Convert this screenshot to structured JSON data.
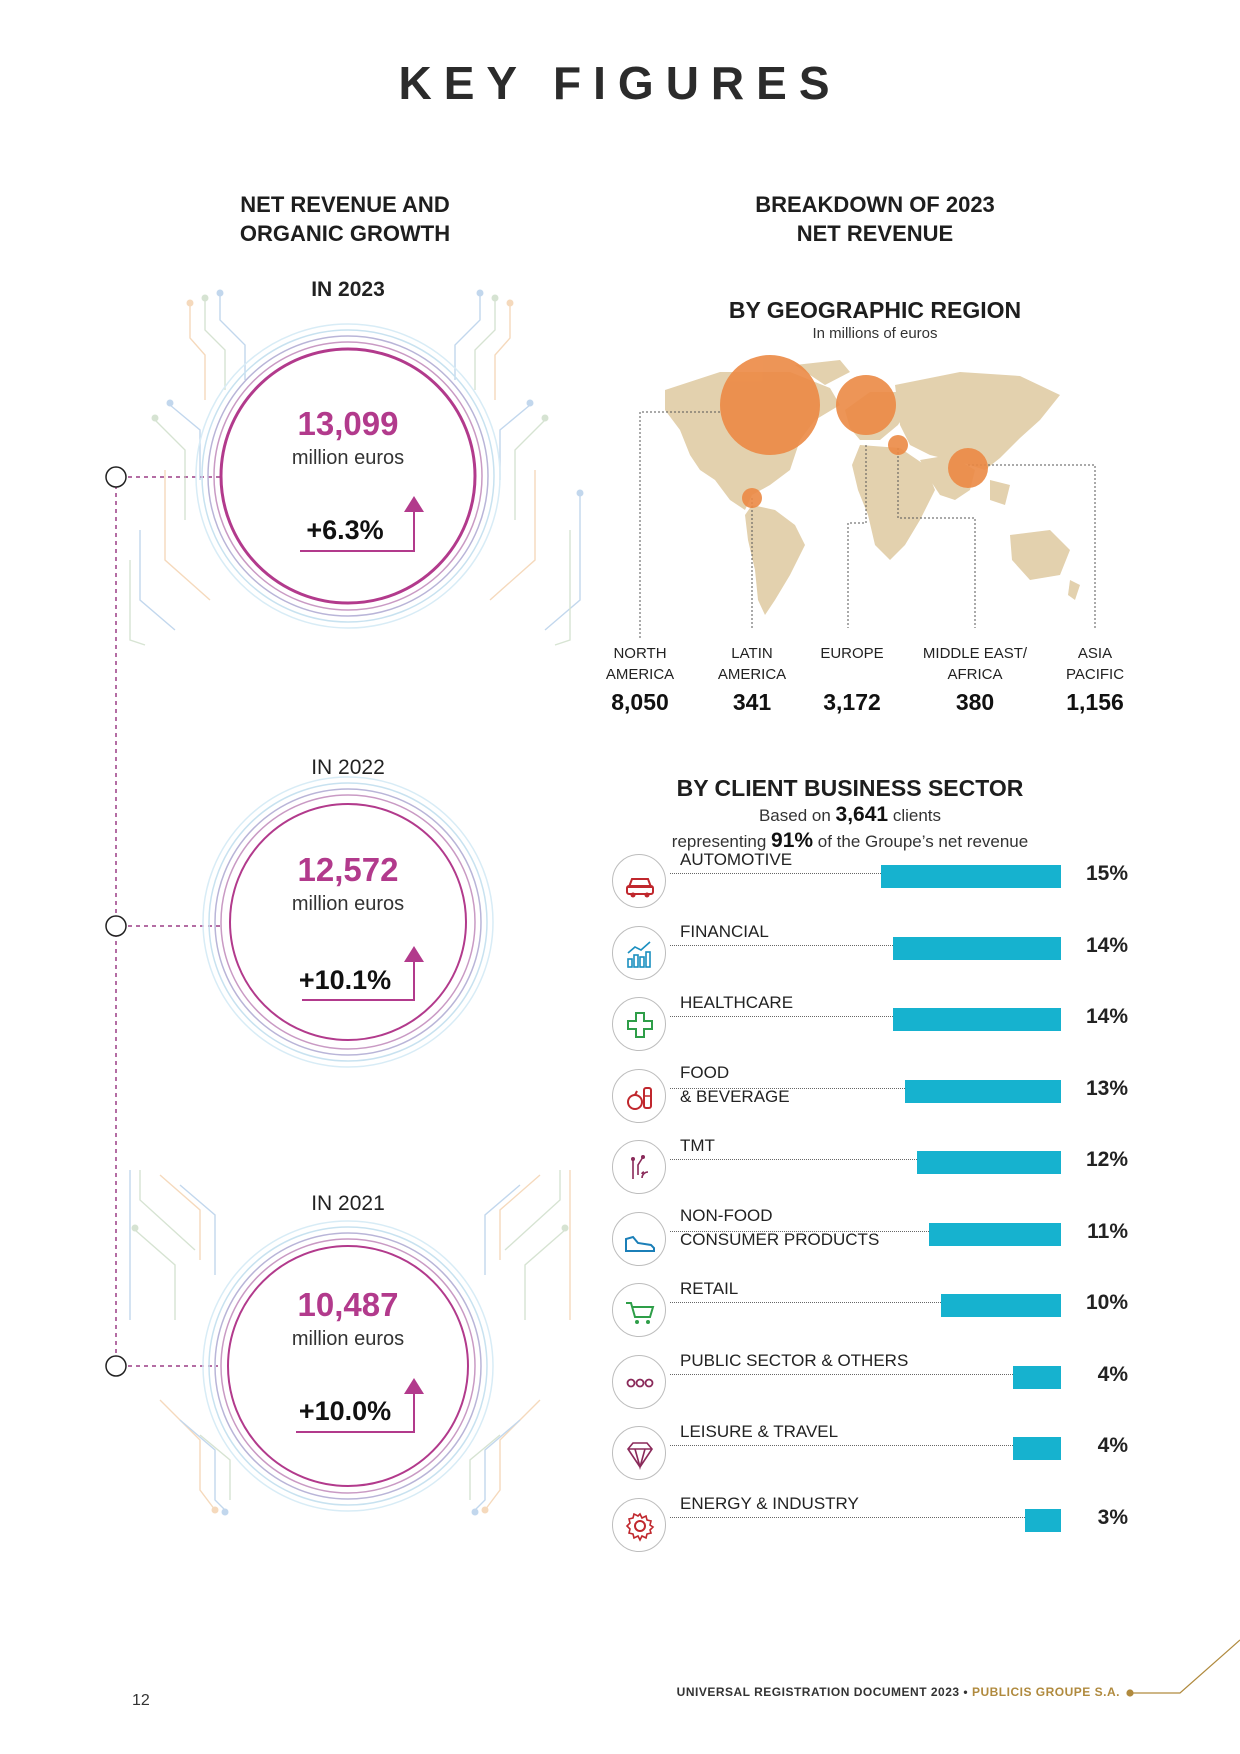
{
  "page": {
    "title": "KEY FIGURES",
    "page_number": "12",
    "footer_doc": "UNIVERSAL REGISTRATION DOCUMENT 2023",
    "footer_sep": " • ",
    "footer_brand": "PUBLICIS GROUPE S.A."
  },
  "left": {
    "heading_line1": "NET REVENUE AND",
    "heading_line2": "ORGANIC GROWTH",
    "years": [
      {
        "label": "IN 2023",
        "value": "13,099",
        "unit": "million euros",
        "growth": "+6.3%"
      },
      {
        "label": "IN 2022",
        "value": "12,572",
        "unit": "million euros",
        "growth": "+10.1%"
      },
      {
        "label": "IN 2021",
        "value": "10,487",
        "unit": "million euros",
        "growth": "+10.0%"
      }
    ],
    "colors": {
      "accent": "#b23a8c"
    }
  },
  "right": {
    "heading_line1": "BREAKDOWN  OF 2023",
    "heading_line2": "NET REVENUE",
    "geo": {
      "title": "BY GEOGRAPHIC REGION",
      "subtitle": "In millions of euros",
      "bubble_color": "#ec8a45",
      "map_color": "#e3d1ae",
      "regions": [
        {
          "line1": "NORTH",
          "line2": "AMERICA",
          "value": "8,050"
        },
        {
          "line1": "LATIN",
          "line2": "AMERICA",
          "value": "341"
        },
        {
          "line1": "EUROPE",
          "line2": "",
          "value": "3,172"
        },
        {
          "line1": "MIDDLE EAST/",
          "line2": "AFRICA",
          "value": "380"
        },
        {
          "line1": "ASIA",
          "line2": "PACIFIC",
          "value": "1,156"
        }
      ]
    },
    "sector": {
      "title": "BY CLIENT BUSINESS SECTOR",
      "sub1_pre": "Based on ",
      "sub1_bold": "3,641",
      "sub1_post": " clients",
      "sub2_pre": "representing ",
      "sub2_bold": "91%",
      "sub2_post": " of the Groupe’s net revenue",
      "bar_color": "#16b2cf"
    }
  },
  "chart_data": {
    "type": "bar",
    "orientation": "horizontal",
    "categories": [
      "AUTOMOTIVE",
      "FINANCIAL",
      "HEALTHCARE",
      "FOOD & BEVERAGE",
      "TMT",
      "NON-FOOD CONSUMER PRODUCTS",
      "RETAIL",
      "PUBLIC SECTOR & OTHERS",
      "LEISURE & TRAVEL",
      "ENERGY & INDUSTRY"
    ],
    "labels": [
      [
        "AUTOMOTIVE"
      ],
      [
        "FINANCIAL"
      ],
      [
        "HEALTHCARE"
      ],
      [
        "FOOD",
        "& BEVERAGE"
      ],
      [
        "TMT"
      ],
      [
        "NON-FOOD",
        "CONSUMER PRODUCTS"
      ],
      [
        "RETAIL"
      ],
      [
        "PUBLIC SECTOR & OTHERS"
      ],
      [
        "LEISURE & TRAVEL"
      ],
      [
        "ENERGY & INDUSTRY"
      ]
    ],
    "values": [
      15,
      14,
      14,
      13,
      12,
      11,
      10,
      4,
      4,
      3
    ],
    "value_labels": [
      "15%",
      "14%",
      "14%",
      "13%",
      "12%",
      "11%",
      "10%",
      "4%",
      "4%",
      "3%"
    ],
    "icons": [
      "car-icon",
      "chart-icon",
      "cross-icon",
      "food-icon",
      "tmt-icon",
      "shoe-icon",
      "cart-icon",
      "dots-icon",
      "diamond-icon",
      "gear-icon"
    ],
    "icon_colors": [
      "#c0272d",
      "#1b8fc0",
      "#2e9e48",
      "#c0272d",
      "#8a2a5a",
      "#1b7fb8",
      "#2e9e48",
      "#8a2a5a",
      "#8a2a5a",
      "#c0272d"
    ],
    "xlim": [
      0,
      15
    ]
  }
}
